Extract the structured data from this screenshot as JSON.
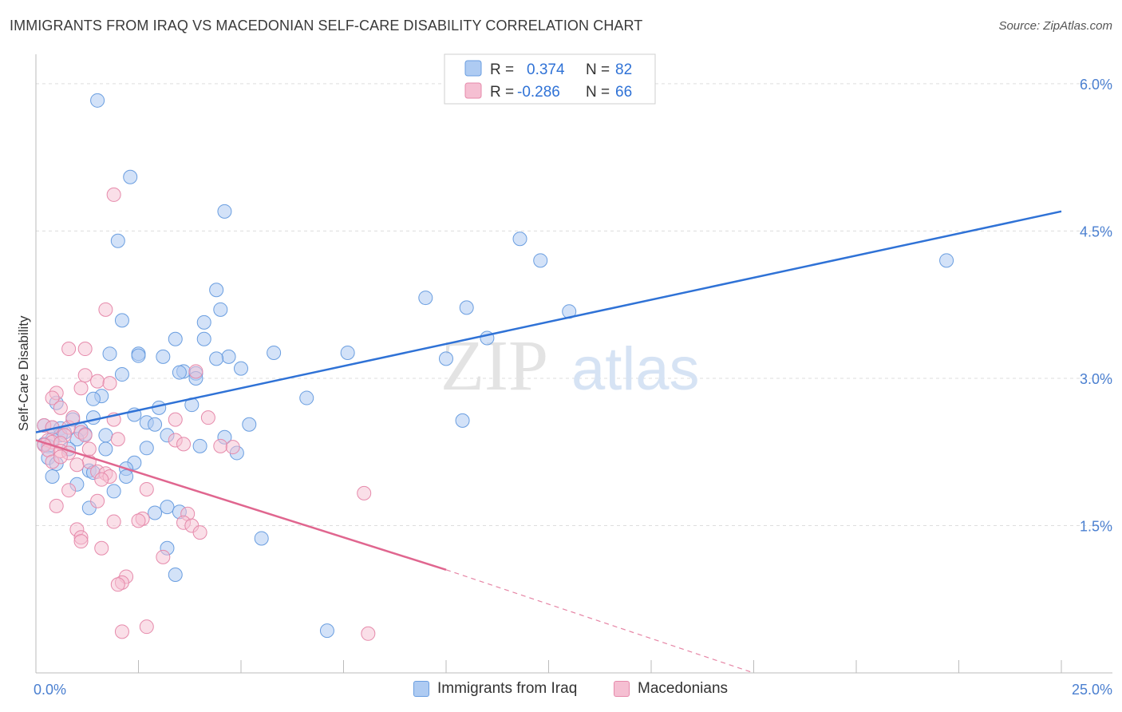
{
  "title": "IMMIGRANTS FROM IRAQ VS MACEDONIAN SELF-CARE DISABILITY CORRELATION CHART",
  "source": "Source: ZipAtlas.com",
  "watermark": {
    "zip": "ZIP",
    "atlas": "atlas"
  },
  "colors": {
    "blue_fill": "#aecbf2",
    "blue_stroke": "#6a9ee0",
    "blue_line": "#2f72d6",
    "pink_fill": "#f5bfd2",
    "pink_stroke": "#e68aab",
    "pink_line": "#e0668f",
    "tick_text": "#4a7fd0",
    "grid": "#dddddd"
  },
  "legend": {
    "rows": [
      {
        "r_label": "R =",
        "r_value": "0.374",
        "n_label": "N =",
        "n_value": "82"
      },
      {
        "r_label": "R =",
        "r_value": "-0.286",
        "n_label": "N =",
        "n_value": "66"
      }
    ]
  },
  "bottom_legend": {
    "series1": "Immigrants from Iraq",
    "series2": "Macedonians"
  },
  "chart_data": {
    "type": "scatter",
    "title": "IMMIGRANTS FROM IRAQ VS MACEDONIAN SELF-CARE DISABILITY CORRELATION CHART",
    "xlabel": "",
    "ylabel": "Self-Care Disability",
    "xlim": [
      0,
      25
    ],
    "ylim": [
      0,
      6.3
    ],
    "x_tick_labels": [
      "0.0%",
      "25.0%"
    ],
    "y_ticks": [
      1.5,
      3.0,
      4.5,
      6.0
    ],
    "y_tick_labels": [
      "1.5%",
      "3.0%",
      "4.5%",
      "6.0%"
    ],
    "grid": true,
    "legend_position": "top-center",
    "series": [
      {
        "name": "Immigrants from Iraq",
        "r": 0.374,
        "n": 82,
        "trend": {
          "x0": 0,
          "y0": 2.45,
          "x1": 25,
          "y1": 4.7
        },
        "points": [
          [
            1.5,
            5.83
          ],
          [
            2.3,
            5.05
          ],
          [
            4.6,
            4.7
          ],
          [
            2.0,
            4.4
          ],
          [
            11.8,
            4.42
          ],
          [
            12.3,
            4.2
          ],
          [
            22.2,
            4.2
          ],
          [
            4.4,
            3.9
          ],
          [
            9.5,
            3.82
          ],
          [
            10.5,
            3.72
          ],
          [
            13.0,
            3.68
          ],
          [
            4.5,
            3.7
          ],
          [
            2.1,
            3.59
          ],
          [
            4.1,
            3.57
          ],
          [
            3.4,
            3.4
          ],
          [
            4.1,
            3.4
          ],
          [
            11.0,
            3.41
          ],
          [
            7.6,
            3.26
          ],
          [
            5.8,
            3.26
          ],
          [
            1.8,
            3.25
          ],
          [
            2.5,
            3.25
          ],
          [
            2.5,
            3.23
          ],
          [
            3.1,
            3.22
          ],
          [
            4.7,
            3.22
          ],
          [
            4.4,
            3.2
          ],
          [
            10.0,
            3.2
          ],
          [
            5.0,
            3.1
          ],
          [
            3.6,
            3.07
          ],
          [
            3.5,
            3.06
          ],
          [
            3.9,
            3.05
          ],
          [
            2.1,
            3.04
          ],
          [
            3.9,
            3.0
          ],
          [
            1.6,
            2.82
          ],
          [
            1.4,
            2.79
          ],
          [
            6.6,
            2.8
          ],
          [
            3.8,
            2.73
          ],
          [
            3.0,
            2.7
          ],
          [
            2.4,
            2.63
          ],
          [
            1.4,
            2.6
          ],
          [
            10.4,
            2.57
          ],
          [
            0.9,
            2.58
          ],
          [
            0.2,
            2.52
          ],
          [
            0.4,
            2.5
          ],
          [
            0.6,
            2.49
          ],
          [
            1.1,
            2.48
          ],
          [
            5.2,
            2.53
          ],
          [
            2.7,
            2.55
          ],
          [
            2.9,
            2.53
          ],
          [
            0.7,
            2.45
          ],
          [
            1.2,
            2.43
          ],
          [
            0.6,
            2.42
          ],
          [
            1.7,
            2.42
          ],
          [
            3.2,
            2.42
          ],
          [
            4.6,
            2.4
          ],
          [
            0.4,
            2.38
          ],
          [
            1.0,
            2.38
          ],
          [
            0.2,
            2.33
          ],
          [
            0.3,
            2.31
          ],
          [
            0.8,
            2.28
          ],
          [
            1.7,
            2.28
          ],
          [
            2.7,
            2.29
          ],
          [
            4.0,
            2.31
          ],
          [
            4.9,
            2.24
          ],
          [
            0.3,
            2.19
          ],
          [
            0.5,
            2.13
          ],
          [
            2.4,
            2.14
          ],
          [
            1.3,
            2.06
          ],
          [
            2.2,
            2.08
          ],
          [
            1.4,
            2.04
          ],
          [
            0.4,
            2.0
          ],
          [
            2.2,
            2.0
          ],
          [
            1.0,
            1.92
          ],
          [
            1.9,
            1.85
          ],
          [
            1.3,
            1.68
          ],
          [
            3.2,
            1.69
          ],
          [
            3.5,
            1.64
          ],
          [
            2.9,
            1.63
          ],
          [
            5.5,
            1.37
          ],
          [
            3.2,
            1.27
          ],
          [
            3.4,
            1.0
          ],
          [
            7.1,
            0.43
          ],
          [
            0.5,
            2.75
          ]
        ]
      },
      {
        "name": "Macedonians",
        "r": -0.286,
        "n": 66,
        "trend": {
          "x0": 0,
          "y0": 2.37,
          "x1": 10,
          "y1": 1.05,
          "dash_x1": 17.5,
          "dash_y1": 0.0
        },
        "points": [
          [
            1.9,
            4.87
          ],
          [
            1.7,
            3.7
          ],
          [
            0.8,
            3.3
          ],
          [
            1.2,
            3.3
          ],
          [
            3.9,
            3.07
          ],
          [
            1.2,
            3.03
          ],
          [
            1.5,
            2.97
          ],
          [
            1.8,
            2.95
          ],
          [
            1.1,
            2.9
          ],
          [
            0.5,
            2.85
          ],
          [
            0.4,
            2.8
          ],
          [
            0.6,
            2.7
          ],
          [
            1.9,
            2.58
          ],
          [
            3.4,
            2.58
          ],
          [
            4.2,
            2.6
          ],
          [
            0.2,
            2.52
          ],
          [
            0.4,
            2.5
          ],
          [
            0.8,
            2.5
          ],
          [
            1.1,
            2.45
          ],
          [
            0.7,
            2.42
          ],
          [
            1.2,
            2.42
          ],
          [
            2.0,
            2.38
          ],
          [
            0.3,
            2.37
          ],
          [
            3.4,
            2.37
          ],
          [
            0.4,
            2.35
          ],
          [
            0.6,
            2.34
          ],
          [
            0.2,
            2.32
          ],
          [
            3.6,
            2.33
          ],
          [
            4.5,
            2.31
          ],
          [
            4.8,
            2.3
          ],
          [
            0.3,
            2.27
          ],
          [
            0.6,
            2.26
          ],
          [
            0.8,
            2.24
          ],
          [
            1.3,
            2.15
          ],
          [
            0.4,
            2.15
          ],
          [
            1.0,
            2.12
          ],
          [
            1.5,
            2.05
          ],
          [
            1.7,
            2.03
          ],
          [
            1.8,
            2.0
          ],
          [
            1.6,
            1.97
          ],
          [
            0.8,
            1.86
          ],
          [
            2.7,
            1.87
          ],
          [
            8.0,
            1.83
          ],
          [
            1.5,
            1.75
          ],
          [
            0.5,
            1.7
          ],
          [
            3.7,
            1.62
          ],
          [
            2.6,
            1.57
          ],
          [
            1.9,
            1.54
          ],
          [
            3.6,
            1.53
          ],
          [
            3.8,
            1.5
          ],
          [
            1.0,
            1.46
          ],
          [
            4.0,
            1.43
          ],
          [
            1.1,
            1.38
          ],
          [
            1.1,
            1.34
          ],
          [
            1.6,
            1.27
          ],
          [
            3.1,
            1.18
          ],
          [
            2.2,
            0.98
          ],
          [
            2.1,
            0.92
          ],
          [
            2.0,
            0.9
          ],
          [
            2.7,
            0.47
          ],
          [
            2.1,
            0.42
          ],
          [
            8.1,
            0.4
          ],
          [
            0.6,
            2.2
          ],
          [
            0.9,
            2.6
          ],
          [
            1.3,
            2.28
          ],
          [
            2.5,
            1.55
          ]
        ]
      }
    ]
  }
}
